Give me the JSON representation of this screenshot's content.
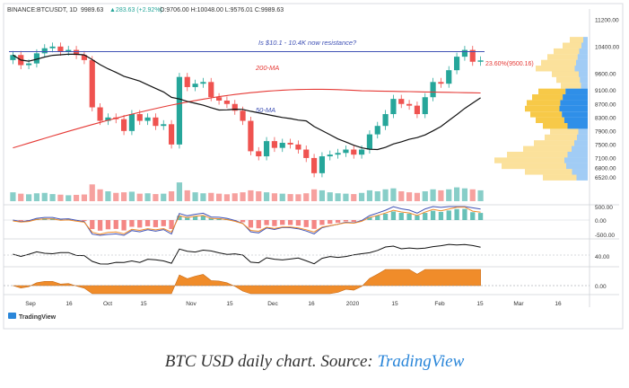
{
  "header": {
    "symbol": "BINANCE:BTCUSDT, 1D",
    "last": "9989.63",
    "change": "▲283.63 (+2.92%)",
    "ohlc": "O:9706.00 H:10048.00 L:9576.01 C:9989.63"
  },
  "annotations": {
    "resistance": "Is $10.1 - 10.4K now resistance?",
    "ma200": "200-MA",
    "ma50": "50-MA",
    "fib": "23.60%(9500.16)"
  },
  "price_axis": [
    "11200.00",
    "10400.00",
    "9600.00",
    "9100.00",
    "8700.00",
    "8300.00",
    "7900.00",
    "7500.00",
    "7100.00",
    "6800.00",
    "6520.00"
  ],
  "macd_axis": [
    "500.00",
    "0.00",
    "-500.00"
  ],
  "rsi_axis": [
    "40.00"
  ],
  "osc_axis": [
    "0.00"
  ],
  "x_axis": [
    "Sep",
    "16",
    "Oct",
    "15",
    "Nov",
    "15",
    "Dec",
    "16",
    "2020",
    "15",
    "Feb",
    "15",
    "Mar",
    "16"
  ],
  "tradingview_logo": "TradingView",
  "caption": {
    "text": "BTC USD daily chart. Source: ",
    "link": "TradingView"
  },
  "colors": {
    "up": "#26a69a",
    "down": "#ef5350",
    "ma200": "#e53935",
    "ma50": "#111111",
    "resistance_line": "#3f51b5",
    "volume_profile": "#f7c948",
    "volume_profile_value_area": "#2f8fe8",
    "osc_fill": "#f08c2a"
  },
  "chart_data": {
    "type": "candlestick",
    "x": [
      "2019-08-25",
      "2019-08-28",
      "2019-08-31",
      "2019-09-03",
      "2019-09-06",
      "2019-09-09",
      "2019-09-12",
      "2019-09-15",
      "2019-09-18",
      "2019-09-21",
      "2019-09-24",
      "2019-09-27",
      "2019-09-30",
      "2019-10-03",
      "2019-10-06",
      "2019-10-09",
      "2019-10-12",
      "2019-10-15",
      "2019-10-18",
      "2019-10-21",
      "2019-10-24",
      "2019-10-27",
      "2019-10-30",
      "2019-11-02",
      "2019-11-05",
      "2019-11-08",
      "2019-11-11",
      "2019-11-14",
      "2019-11-17",
      "2019-11-20",
      "2019-11-23",
      "2019-11-26",
      "2019-11-29",
      "2019-12-02",
      "2019-12-05",
      "2019-12-08",
      "2019-12-11",
      "2019-12-14",
      "2019-12-17",
      "2019-12-20",
      "2019-12-23",
      "2019-12-26",
      "2019-12-29",
      "2020-01-01",
      "2020-01-04",
      "2020-01-07",
      "2020-01-10",
      "2020-01-13",
      "2020-01-16",
      "2020-01-19",
      "2020-01-22",
      "2020-01-25",
      "2020-01-28",
      "2020-01-31",
      "2020-02-03",
      "2020-02-06",
      "2020-02-09",
      "2020-02-12",
      "2020-02-15",
      "2020-02-18"
    ],
    "close": [
      10150,
      9850,
      9900,
      10200,
      10350,
      10400,
      10250,
      10300,
      10150,
      10000,
      8600,
      8200,
      8300,
      8250,
      7900,
      8400,
      8200,
      8300,
      8050,
      8100,
      7500,
      9500,
      9200,
      9300,
      9350,
      8900,
      8800,
      8700,
      8500,
      8200,
      7300,
      7150,
      7600,
      7400,
      7550,
      7500,
      7350,
      7100,
      6650,
      7150,
      7200,
      7250,
      7350,
      7200,
      7350,
      7800,
      8050,
      8400,
      8850,
      8700,
      8650,
      8400,
      8900,
      9350,
      9300,
      9700,
      10100,
      10300,
      9950,
      9989.63
    ],
    "volume_rel": [
      0.45,
      0.38,
      0.35,
      0.4,
      0.42,
      0.36,
      0.33,
      0.3,
      0.32,
      0.34,
      0.85,
      0.6,
      0.5,
      0.42,
      0.45,
      0.48,
      0.38,
      0.4,
      0.36,
      0.38,
      0.5,
      0.95,
      0.55,
      0.45,
      0.4,
      0.42,
      0.38,
      0.35,
      0.4,
      0.45,
      0.55,
      0.5,
      0.45,
      0.4,
      0.38,
      0.36,
      0.35,
      0.4,
      0.6,
      0.55,
      0.45,
      0.4,
      0.38,
      0.36,
      0.42,
      0.55,
      0.5,
      0.6,
      0.65,
      0.5,
      0.45,
      0.42,
      0.5,
      0.6,
      0.55,
      0.6,
      0.7,
      0.65,
      0.6,
      0.55
    ],
    "ma200": [
      null
    ],
    "ylim": [
      6300,
      11300
    ]
  }
}
